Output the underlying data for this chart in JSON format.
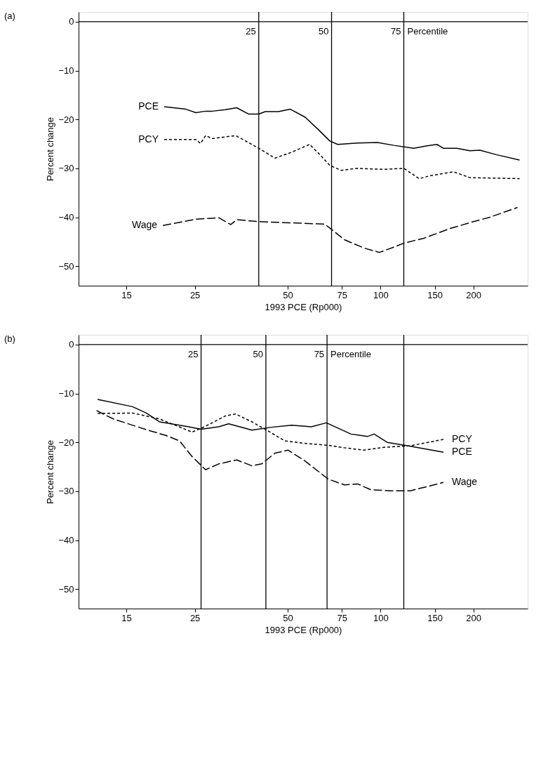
{
  "chart_data": [
    {
      "type": "line",
      "title": "(a)",
      "xlabel": "1993 PCE (Rp000)",
      "ylabel": "Percent change",
      "log": "x",
      "xlim": [
        10.5,
        300
      ],
      "xticks": [
        15,
        25,
        50,
        75,
        100,
        150,
        200
      ],
      "ylim": [
        -54,
        2
      ],
      "yticks": [
        0,
        -10,
        -20,
        -30,
        -40,
        -50
      ],
      "grid": false,
      "legend": "left",
      "ref_lines": [
        {
          "axis": "y",
          "value": 0,
          "label": null,
          "color": "#000000"
        },
        {
          "axis": "x",
          "value": 40.3,
          "label": null,
          "color": "#000000"
        },
        {
          "axis": "x",
          "value": 69.4,
          "label": null,
          "color": "#000000"
        },
        {
          "axis": "x",
          "value": 119,
          "label": null,
          "color": "#000000"
        }
      ],
      "annotations": [
        {
          "text": "25",
          "x": 40.3,
          "y": -2
        },
        {
          "text": "50",
          "x": 69.4,
          "y": -2
        },
        {
          "text": "75",
          "x": 119,
          "y": -2
        },
        "Percentile"
      ],
      "series": [
        {
          "name": "PCE",
          "color": "#000000",
          "line_style": "solid",
          "x": [
            19.9,
            23.4,
            25.2,
            27.1,
            28.5,
            31.4,
            34.2,
            37.4,
            40.3,
            42.3,
            46.7,
            51.0,
            56.9,
            62.7,
            68.5,
            72.7,
            84.3,
            97.8,
            110.6,
            128.3,
            141.5,
            152.4,
            160.2,
            176.6,
            195.0,
            210.0,
            237.6,
            282.5
          ],
          "values": [
            -17.4,
            -17.9,
            -18.6,
            -18.3,
            -18.3,
            -18.0,
            -17.6,
            -18.9,
            -18.9,
            -18.4,
            -18.4,
            -17.9,
            -19.5,
            -22.0,
            -24.4,
            -25.1,
            -24.8,
            -24.7,
            -25.3,
            -25.9,
            -25.4,
            -25.1,
            -25.9,
            -25.9,
            -26.4,
            -26.3,
            -27.2,
            -28.3
          ]
        },
        {
          "name": "PCY",
          "color": "#000000",
          "line_style": "dashed",
          "x": [
            19.9,
            25.2,
            26.1,
            27.1,
            28.5,
            33.9,
            35.6,
            40.3,
            45.5,
            51.5,
            58.9,
            64.3,
            68.5,
            74.5,
            84.3,
            102.8,
            119.1,
            133.4,
            145.2,
            172.6,
            195.0,
            282.5
          ],
          "values": [
            -24.1,
            -24.1,
            -24.9,
            -23.3,
            -23.9,
            -23.3,
            -24.0,
            -25.9,
            -27.9,
            -26.7,
            -25.1,
            -27.5,
            -29.4,
            -30.4,
            -30.0,
            -30.2,
            -30.0,
            -32.1,
            -31.5,
            -30.7,
            -31.9,
            -32.1
          ]
        },
        {
          "name": "Wage",
          "color": "#000000",
          "line_style": "longdash",
          "x": [
            19.7,
            25.2,
            28.5,
            29.9,
            32.7,
            34.2,
            40.3,
            49.0,
            65.9,
            68.5,
            76.4,
            88.5,
            99.2,
            110.6,
            119.1,
            138.1,
            168.2,
            200.0,
            226.3,
            278.0
          ],
          "values": [
            -41.7,
            -40.4,
            -40.2,
            -40.1,
            -41.5,
            -40.5,
            -40.9,
            -41.1,
            -41.4,
            -42.2,
            -44.6,
            -46.3,
            -47.2,
            -46.1,
            -45.3,
            -44.3,
            -42.3,
            -40.9,
            -40.0,
            -38.0
          ]
        }
      ]
    },
    {
      "type": "line",
      "title": "(b)",
      "xlabel": "1993 PCE (Rp000)",
      "ylabel": "Percent change",
      "log": "x",
      "xlim": [
        10.5,
        300
      ],
      "xticks": [
        15,
        25,
        50,
        75,
        100,
        150,
        200
      ],
      "ylim": [
        -54,
        2
      ],
      "yticks": [
        0,
        -10,
        -20,
        -30,
        -40,
        -50
      ],
      "grid": false,
      "legend": "right",
      "ref_lines": [
        {
          "axis": "y",
          "value": 0,
          "label": null,
          "color": "#000000"
        },
        {
          "axis": "x",
          "value": 26.2,
          "label": null,
          "color": "#000000"
        },
        {
          "axis": "x",
          "value": 42.5,
          "label": null,
          "color": "#000000"
        },
        {
          "axis": "x",
          "value": 67.1,
          "label": null,
          "color": "#000000"
        },
        {
          "axis": "x",
          "value": 119,
          "label": null,
          "color": "#000000"
        }
      ],
      "annotations": [
        {
          "text": "25",
          "x": 26.2,
          "y": -2
        },
        {
          "text": "50",
          "x": 42.5,
          "y": -2
        },
        {
          "text": "75",
          "x": 67.1,
          "y": -2
        },
        "Percentile"
      ],
      "series": [
        {
          "name": "PCE",
          "color": "#000000",
          "line_style": "solid",
          "x": [
            12.1,
            15.7,
            17.4,
            19.2,
            23.4,
            26.2,
            29.9,
            32.2,
            38.3,
            44.4,
            51.5,
            59.7,
            66.8,
            80.2,
            90.7,
            95.4,
            105.1,
            125.0,
            160.0
          ],
          "values": [
            -11.2,
            -12.7,
            -14.0,
            -15.8,
            -16.7,
            -17.3,
            -16.8,
            -16.2,
            -17.5,
            -16.9,
            -16.5,
            -16.8,
            -16.0,
            -18.3,
            -18.8,
            -18.3,
            -20.0,
            -20.8,
            -22.0
          ]
        },
        {
          "name": "PCY",
          "color": "#000000",
          "line_style": "dashed",
          "x": [
            12.1,
            15.7,
            19.2,
            24.5,
            27.1,
            31.4,
            33.9,
            38.3,
            43.3,
            49.0,
            56.9,
            67.6,
            76.4,
            88.5,
            102.8,
            125.0,
            160.0
          ],
          "values": [
            -14.1,
            -14.0,
            -15.2,
            -17.9,
            -16.7,
            -14.6,
            -14.2,
            -15.8,
            -17.7,
            -19.7,
            -20.2,
            -20.6,
            -21.1,
            -21.6,
            -21.0,
            -20.7,
            -19.4
          ]
        },
        {
          "name": "Wage",
          "color": "#000000",
          "line_style": "longdash",
          "x": [
            12.0,
            13.6,
            17.4,
            20.2,
            22.3,
            24.5,
            27.1,
            29.9,
            34.2,
            38.3,
            41.2,
            45.5,
            50.2,
            56.9,
            67.6,
            76.4,
            84.3,
            93.1,
            107.9,
            125.0,
            160.0
          ],
          "values": [
            -13.5,
            -15.2,
            -17.4,
            -18.6,
            -19.7,
            -22.9,
            -25.6,
            -24.4,
            -23.6,
            -24.8,
            -24.4,
            -22.2,
            -21.6,
            -23.8,
            -27.5,
            -28.7,
            -28.5,
            -29.7,
            -29.9,
            -29.9,
            -28.2
          ]
        }
      ]
    }
  ]
}
